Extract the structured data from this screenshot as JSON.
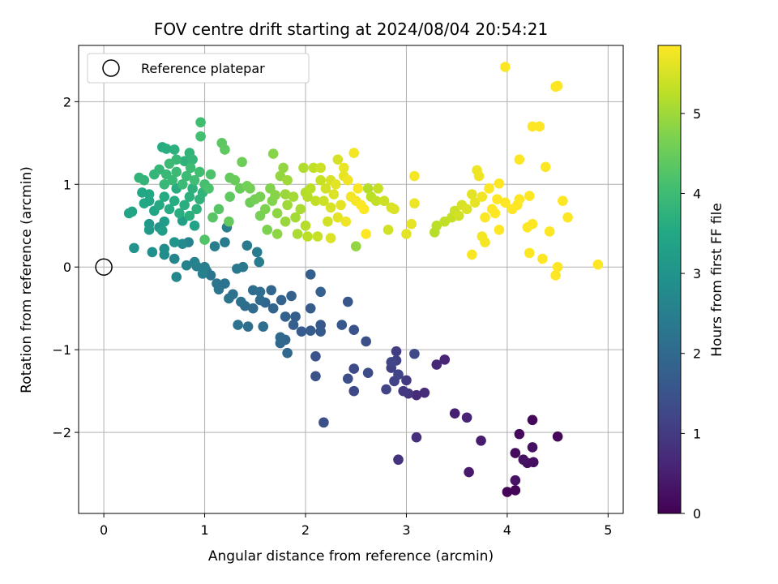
{
  "chart_data": {
    "type": "scatter",
    "title": "FOV centre drift starting at 2024/08/04 20:54:21",
    "xlabel": "Angular distance from reference (arcmin)",
    "ylabel": "Rotation from reference (arcmin)",
    "xlim": [
      -0.25,
      5.15
    ],
    "ylim": [
      -2.98,
      2.68
    ],
    "xticks": [
      0,
      1,
      2,
      3,
      4,
      5
    ],
    "yticks": [
      -2,
      -1,
      0,
      1,
      2
    ],
    "ytick_labels": [
      "−2",
      "−1",
      "0",
      "1",
      "2"
    ],
    "grid": true,
    "legend": {
      "label": "Reference platepar",
      "placement": "top-left"
    },
    "reference_point": {
      "x": 0,
      "y": 0
    },
    "colorbar": {
      "label": "Hours from first FF file",
      "colormap": "viridis",
      "range": [
        0,
        5.85
      ],
      "ticks": [
        0,
        1,
        2,
        3,
        4,
        5
      ]
    },
    "points": [
      [
        4.0,
        -2.72,
        0.05
      ],
      [
        4.08,
        -2.7,
        0.08
      ],
      [
        4.25,
        -1.85,
        0.1
      ],
      [
        4.5,
        -2.05,
        0.12
      ],
      [
        4.12,
        -2.02,
        0.15
      ],
      [
        4.08,
        -2.25,
        0.18
      ],
      [
        4.2,
        -2.37,
        0.2
      ],
      [
        4.26,
        -2.36,
        0.22
      ],
      [
        4.25,
        -2.18,
        0.25
      ],
      [
        4.16,
        -2.33,
        0.28
      ],
      [
        4.08,
        -2.58,
        0.3
      ],
      [
        3.62,
        -2.48,
        0.4
      ],
      [
        3.74,
        -2.1,
        0.45
      ],
      [
        3.48,
        -1.77,
        0.5
      ],
      [
        3.6,
        -1.82,
        0.55
      ],
      [
        3.38,
        -1.12,
        0.6
      ],
      [
        3.3,
        -1.18,
        0.65
      ],
      [
        3.1,
        -1.55,
        0.7
      ],
      [
        3.18,
        -1.52,
        0.75
      ],
      [
        3.1,
        -2.06,
        0.8
      ],
      [
        2.92,
        -2.33,
        0.85
      ],
      [
        3.02,
        -1.53,
        0.9
      ],
      [
        2.97,
        -1.5,
        0.95
      ],
      [
        3.0,
        -1.37,
        1.0
      ],
      [
        2.9,
        -1.02,
        1.05
      ],
      [
        2.9,
        -1.13,
        1.1
      ],
      [
        2.85,
        -1.22,
        1.12
      ],
      [
        2.88,
        -1.38,
        1.15
      ],
      [
        2.8,
        -1.48,
        1.18
      ],
      [
        2.92,
        -1.3,
        1.2
      ],
      [
        2.85,
        -1.15,
        1.22
      ],
      [
        3.08,
        -1.05,
        1.25
      ],
      [
        2.48,
        -1.5,
        1.3
      ],
      [
        2.48,
        -1.23,
        1.32
      ],
      [
        2.62,
        -1.28,
        1.35
      ],
      [
        2.42,
        -1.35,
        1.38
      ],
      [
        2.6,
        -0.9,
        1.4
      ],
      [
        2.18,
        -1.88,
        1.42
      ],
      [
        2.1,
        -1.32,
        1.45
      ],
      [
        2.1,
        -1.08,
        1.48
      ],
      [
        2.48,
        -0.76,
        1.5
      ],
      [
        2.42,
        -0.42,
        1.55
      ],
      [
        2.36,
        -0.7,
        1.6
      ],
      [
        2.15,
        -0.7,
        1.62
      ],
      [
        2.15,
        -0.78,
        1.65
      ],
      [
        2.05,
        -0.5,
        1.68
      ],
      [
        2.05,
        -0.77,
        1.7
      ],
      [
        1.96,
        -0.78,
        1.72
      ],
      [
        1.9,
        -0.6,
        1.74
      ],
      [
        1.88,
        -0.7,
        1.76
      ],
      [
        2.05,
        -0.09,
        1.78
      ],
      [
        2.15,
        -0.3,
        1.8
      ],
      [
        1.86,
        -0.35,
        1.82
      ],
      [
        1.8,
        -0.6,
        1.84
      ],
      [
        1.76,
        -0.4,
        1.86
      ],
      [
        1.68,
        -0.5,
        1.88
      ],
      [
        1.6,
        -0.43,
        1.9
      ],
      [
        1.66,
        -0.28,
        1.92
      ],
      [
        1.8,
        -0.88,
        1.94
      ],
      [
        1.75,
        -0.85,
        1.96
      ],
      [
        1.75,
        -0.92,
        1.98
      ],
      [
        1.82,
        -1.04,
        2.0
      ],
      [
        1.55,
        -0.4,
        2.02
      ],
      [
        1.48,
        -0.5,
        2.04
      ],
      [
        1.4,
        -0.47,
        2.06
      ],
      [
        1.48,
        -0.28,
        2.08
      ],
      [
        1.55,
        -0.3,
        2.1
      ],
      [
        1.58,
        -0.72,
        2.12
      ],
      [
        1.43,
        -0.72,
        2.14
      ],
      [
        1.36,
        -0.42,
        2.16
      ],
      [
        1.28,
        -0.33,
        2.18
      ],
      [
        1.33,
        -0.7,
        2.2
      ],
      [
        1.2,
        -0.2,
        2.22
      ],
      [
        1.24,
        -0.38,
        2.24
      ],
      [
        1.14,
        -0.27,
        2.26
      ],
      [
        1.12,
        -0.2,
        2.28
      ],
      [
        1.06,
        -0.1,
        2.3
      ],
      [
        1.02,
        -0.05,
        2.32
      ],
      [
        1.32,
        -0.02,
        2.34
      ],
      [
        1.38,
        0.0,
        2.36
      ],
      [
        1.42,
        0.26,
        2.38
      ],
      [
        1.52,
        0.18,
        2.4
      ],
      [
        1.54,
        0.06,
        2.42
      ],
      [
        1.2,
        0.3,
        2.44
      ],
      [
        1.22,
        0.48,
        2.46
      ],
      [
        1.1,
        0.25,
        2.48
      ],
      [
        1.0,
        0.0,
        2.5
      ],
      [
        0.92,
        0.01,
        2.52
      ],
      [
        0.98,
        -0.08,
        2.54
      ],
      [
        0.82,
        0.02,
        2.56
      ],
      [
        0.9,
        0.06,
        2.58
      ],
      [
        0.84,
        0.3,
        2.6
      ],
      [
        0.7,
        0.1,
        2.65
      ],
      [
        0.72,
        -0.12,
        2.7
      ],
      [
        0.78,
        0.28,
        2.75
      ],
      [
        0.6,
        0.15,
        2.8
      ],
      [
        0.6,
        0.22,
        2.85
      ],
      [
        0.48,
        0.18,
        2.9
      ],
      [
        0.3,
        0.23,
        2.95
      ],
      [
        0.7,
        0.3,
        3.0
      ],
      [
        0.55,
        0.48,
        3.05
      ],
      [
        0.45,
        0.52,
        3.1
      ],
      [
        0.45,
        0.45,
        3.15
      ],
      [
        0.6,
        0.55,
        3.2
      ],
      [
        0.58,
        0.44,
        3.25
      ],
      [
        0.78,
        0.56,
        3.3
      ],
      [
        0.9,
        0.5,
        3.35
      ],
      [
        0.25,
        0.65,
        3.4
      ],
      [
        0.28,
        0.67,
        3.42
      ],
      [
        0.5,
        0.68,
        3.44
      ],
      [
        0.45,
        0.8,
        3.46
      ],
      [
        0.4,
        0.77,
        3.48
      ],
      [
        0.38,
        0.9,
        3.5
      ],
      [
        0.45,
        0.88,
        3.52
      ],
      [
        0.55,
        0.75,
        3.54
      ],
      [
        0.6,
        0.85,
        3.56
      ],
      [
        0.65,
        0.7,
        3.58
      ],
      [
        0.7,
        0.8,
        3.6
      ],
      [
        0.72,
        0.95,
        3.62
      ],
      [
        0.75,
        0.65,
        3.64
      ],
      [
        0.8,
        0.75,
        3.66
      ],
      [
        0.85,
        0.62,
        3.68
      ],
      [
        0.85,
        0.85,
        3.7
      ],
      [
        0.88,
        0.95,
        3.72
      ],
      [
        0.92,
        0.7,
        3.74
      ],
      [
        0.95,
        0.82,
        3.76
      ],
      [
        0.98,
        0.9,
        3.78
      ],
      [
        0.35,
        1.08,
        3.8
      ],
      [
        0.4,
        1.05,
        3.82
      ],
      [
        0.5,
        1.12,
        3.84
      ],
      [
        0.55,
        1.18,
        3.86
      ],
      [
        0.6,
        1.0,
        3.88
      ],
      [
        0.62,
        1.12,
        3.9
      ],
      [
        0.68,
        1.05,
        3.92
      ],
      [
        0.72,
        1.15,
        3.94
      ],
      [
        0.78,
        1.0,
        3.96
      ],
      [
        0.82,
        1.1,
        3.98
      ],
      [
        0.86,
        1.2,
        4.0
      ],
      [
        0.9,
        1.05,
        4.02
      ],
      [
        0.95,
        1.15,
        4.04
      ],
      [
        0.58,
        1.45,
        3.6
      ],
      [
        0.62,
        1.43,
        3.65
      ],
      [
        0.7,
        1.42,
        3.7
      ],
      [
        0.8,
        1.28,
        3.75
      ],
      [
        0.85,
        1.38,
        3.8
      ],
      [
        0.88,
        1.3,
        3.85
      ],
      [
        0.72,
        1.3,
        3.9
      ],
      [
        0.65,
        1.25,
        3.95
      ],
      [
        0.96,
        1.75,
        4.05
      ],
      [
        0.96,
        1.58,
        4.1
      ],
      [
        1.0,
        1.0,
        4.1
      ],
      [
        1.04,
        0.95,
        4.15
      ],
      [
        1.06,
        1.12,
        4.2
      ],
      [
        1.0,
        0.33,
        4.25
      ],
      [
        1.08,
        0.6,
        4.3
      ],
      [
        1.14,
        0.7,
        4.3
      ],
      [
        1.17,
        1.5,
        4.35
      ],
      [
        1.2,
        1.42,
        4.4
      ],
      [
        1.25,
        0.85,
        4.4
      ],
      [
        1.24,
        0.55,
        4.45
      ],
      [
        1.25,
        1.08,
        4.45
      ],
      [
        1.3,
        1.05,
        4.5
      ],
      [
        1.35,
        0.95,
        4.5
      ],
      [
        1.37,
        1.27,
        4.55
      ],
      [
        1.45,
        0.78,
        4.55
      ],
      [
        1.45,
        0.95,
        4.6
      ],
      [
        1.5,
        0.82,
        4.6
      ],
      [
        1.55,
        0.85,
        4.65
      ],
      [
        1.55,
        0.62,
        4.65
      ],
      [
        1.6,
        0.7,
        4.7
      ],
      [
        1.62,
        0.45,
        4.7
      ],
      [
        1.65,
        0.95,
        4.75
      ],
      [
        1.67,
        0.8,
        4.75
      ],
      [
        1.68,
        1.37,
        4.8
      ],
      [
        1.7,
        0.87,
        4.8
      ],
      [
        1.72,
        0.65,
        4.85
      ],
      [
        1.72,
        0.4,
        4.85
      ],
      [
        1.75,
        1.1,
        4.9
      ],
      [
        1.78,
        1.2,
        4.9
      ],
      [
        1.8,
        0.88,
        4.95
      ],
      [
        1.8,
        0.55,
        4.95
      ],
      [
        1.82,
        0.75,
        5.0
      ],
      [
        1.82,
        1.05,
        5.0
      ],
      [
        1.88,
        0.85,
        5.05
      ],
      [
        1.9,
        0.6,
        5.05
      ],
      [
        1.92,
        0.4,
        5.1
      ],
      [
        1.95,
        0.7,
        5.1
      ],
      [
        1.98,
        1.2,
        5.15
      ],
      [
        2.0,
        0.9,
        5.15
      ],
      [
        2.0,
        0.5,
        5.2
      ],
      [
        2.02,
        0.85,
        5.2
      ],
      [
        2.05,
        0.95,
        5.25
      ],
      [
        2.02,
        0.37,
        5.25
      ],
      [
        2.08,
        1.2,
        5.3
      ],
      [
        2.1,
        0.8,
        5.3
      ],
      [
        2.12,
        0.37,
        5.35
      ],
      [
        2.15,
        1.05,
        5.35
      ],
      [
        2.15,
        1.2,
        5.4
      ],
      [
        2.18,
        0.8,
        5.4
      ],
      [
        2.2,
        0.95,
        5.45
      ],
      [
        2.22,
        0.55,
        5.45
      ],
      [
        2.25,
        1.05,
        5.5
      ],
      [
        2.25,
        0.72,
        5.5
      ],
      [
        2.25,
        0.35,
        5.55
      ],
      [
        2.28,
        0.88,
        5.55
      ],
      [
        2.3,
        1.0,
        5.6
      ],
      [
        2.32,
        0.6,
        5.6
      ],
      [
        2.35,
        0.75,
        5.62
      ],
      [
        2.38,
        1.1,
        5.65
      ],
      [
        2.38,
        1.2,
        5.68
      ],
      [
        2.4,
        0.55,
        5.7
      ],
      [
        2.42,
        1.05,
        5.72
      ],
      [
        2.45,
        0.85,
        5.74
      ],
      [
        2.48,
        1.38,
        5.76
      ],
      [
        2.5,
        0.8,
        5.78
      ],
      [
        2.52,
        0.95,
        5.8
      ],
      [
        2.55,
        0.75,
        5.82
      ],
      [
        2.58,
        0.7,
        5.84
      ],
      [
        2.6,
        0.4,
        5.85
      ],
      [
        2.62,
        0.95,
        5.2
      ],
      [
        2.65,
        0.85,
        5.25
      ],
      [
        2.7,
        0.8,
        5.3
      ],
      [
        2.72,
        0.95,
        5.35
      ],
      [
        2.78,
        0.8,
        5.4
      ],
      [
        2.82,
        0.45,
        5.45
      ],
      [
        2.85,
        0.72,
        5.5
      ],
      [
        2.88,
        0.7,
        5.55
      ],
      [
        3.0,
        0.4,
        5.6
      ],
      [
        3.05,
        0.52,
        5.65
      ],
      [
        3.08,
        0.77,
        5.7
      ],
      [
        3.08,
        1.1,
        5.75
      ],
      [
        2.5,
        0.25,
        4.9
      ],
      [
        1.42,
        0.98,
        4.6
      ],
      [
        2.32,
        1.3,
        5.5
      ],
      [
        3.28,
        0.42,
        5.2
      ],
      [
        3.3,
        0.5,
        5.25
      ],
      [
        3.38,
        0.55,
        5.3
      ],
      [
        3.45,
        0.6,
        5.35
      ],
      [
        3.48,
        0.68,
        5.4
      ],
      [
        3.52,
        0.62,
        5.45
      ],
      [
        3.55,
        0.75,
        5.5
      ],
      [
        3.6,
        0.7,
        5.55
      ],
      [
        3.65,
        0.88,
        5.6
      ],
      [
        3.68,
        0.78,
        5.65
      ],
      [
        3.7,
        1.17,
        5.7
      ],
      [
        3.72,
        1.1,
        5.72
      ],
      [
        3.75,
        0.85,
        5.74
      ],
      [
        3.75,
        0.37,
        5.76
      ],
      [
        3.78,
        0.3,
        5.78
      ],
      [
        3.65,
        0.15,
        5.8
      ],
      [
        3.78,
        0.6,
        5.82
      ],
      [
        3.82,
        0.95,
        5.84
      ],
      [
        3.85,
        0.7,
        5.85
      ],
      [
        3.88,
        0.65,
        5.85
      ],
      [
        3.9,
        0.82,
        5.85
      ],
      [
        3.92,
        1.01,
        5.85
      ],
      [
        3.92,
        0.45,
        5.85
      ],
      [
        3.98,
        0.78,
        5.85
      ],
      [
        3.98,
        2.42,
        5.85
      ],
      [
        4.05,
        0.7,
        5.85
      ],
      [
        4.1,
        0.75,
        5.85
      ],
      [
        4.12,
        0.82,
        5.85
      ],
      [
        4.12,
        1.3,
        5.85
      ],
      [
        4.2,
        0.48,
        5.85
      ],
      [
        4.22,
        0.86,
        5.85
      ],
      [
        4.25,
        0.52,
        5.85
      ],
      [
        4.25,
        1.7,
        5.85
      ],
      [
        4.32,
        1.7,
        5.85
      ],
      [
        4.22,
        0.17,
        5.85
      ],
      [
        4.35,
        0.1,
        5.85
      ],
      [
        4.38,
        1.21,
        5.85
      ],
      [
        4.42,
        0.43,
        5.85
      ],
      [
        4.48,
        -0.1,
        5.85
      ],
      [
        4.5,
        0.0,
        5.85
      ],
      [
        4.48,
        2.18,
        5.85
      ],
      [
        4.55,
        0.8,
        5.85
      ],
      [
        4.6,
        0.6,
        5.85
      ],
      [
        4.9,
        0.03,
        5.85
      ],
      [
        4.5,
        2.19,
        5.85
      ]
    ]
  }
}
